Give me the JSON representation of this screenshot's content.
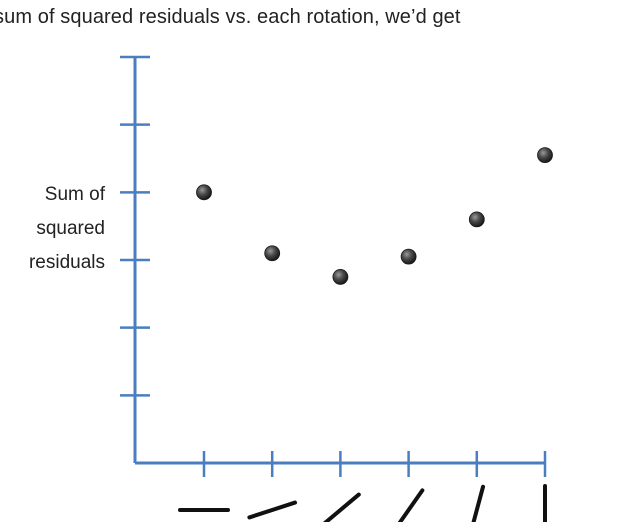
{
  "caption": "sum of squared residuals vs. each rotation, we’d get",
  "colors": {
    "axis": "#4a7ec0",
    "point": "#3a3a3a",
    "rotation_line": "#111111"
  },
  "chart_data": {
    "type": "scatter",
    "title": "",
    "xlabel": "",
    "ylabel_lines": [
      "Sum of",
      "squared",
      "residuals"
    ],
    "x": [
      1,
      2,
      3,
      4,
      5,
      6
    ],
    "y": [
      4.0,
      3.1,
      2.75,
      3.05,
      3.6,
      4.55
    ],
    "xlim": [
      0.5,
      6.5
    ],
    "ylim": [
      0,
      6
    ],
    "y_ticks": [
      1,
      2,
      3,
      4,
      5,
      6
    ],
    "x_ticks": [
      1,
      2,
      3,
      4,
      5,
      6
    ],
    "rotation_angles_deg": [
      0,
      18,
      40,
      55,
      75,
      90
    ],
    "grid": false
  }
}
